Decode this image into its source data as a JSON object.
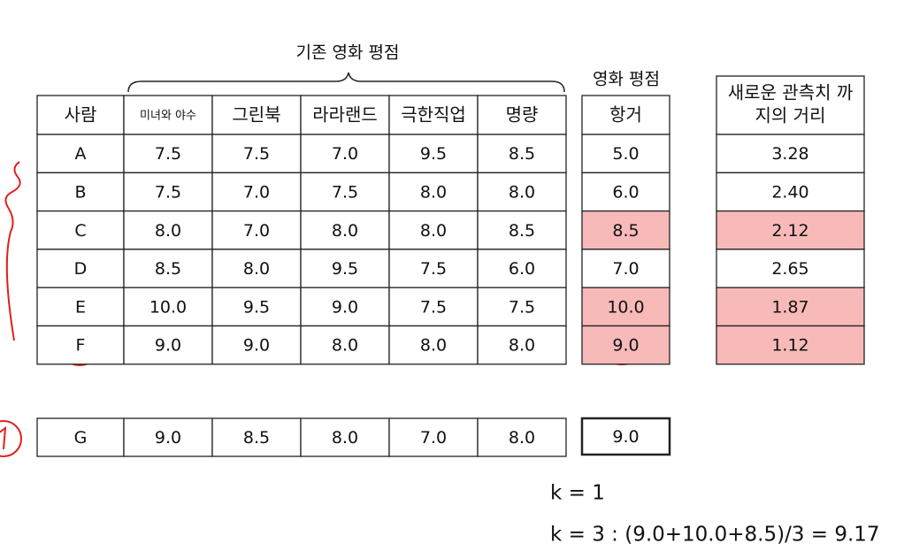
{
  "group_label": "기존 영화 평점",
  "header": [
    "사람",
    "미녀와 야수",
    "그린북",
    "라라랜드",
    "극한직업",
    "명량"
  ],
  "target_label": "영화 평점",
  "target_header": "항거",
  "distance_header": [
    "새로운 관측치 까",
    "지의 거리"
  ],
  "rows": [
    {
      "cells": [
        "A",
        "7.5",
        "7.5",
        "7.0",
        "9.5",
        "8.5"
      ],
      "target": "5.0",
      "distance": "3.28",
      "highlighted": false
    },
    {
      "cells": [
        "B",
        "7.5",
        "7.0",
        "7.5",
        "8.0",
        "8.0"
      ],
      "target": "6.0",
      "distance": "2.40",
      "highlighted": false
    },
    {
      "cells": [
        "C",
        "8.0",
        "7.0",
        "8.0",
        "8.0",
        "8.5"
      ],
      "target": "8.5",
      "distance": "2.12",
      "highlighted": true
    },
    {
      "cells": [
        "D",
        "8.5",
        "8.0",
        "9.5",
        "7.5",
        "6.0"
      ],
      "target": "7.0",
      "distance": "2.65",
      "highlighted": false
    },
    {
      "cells": [
        "E",
        "10.0",
        "9.5",
        "9.0",
        "7.5",
        "7.5"
      ],
      "target": "10.0",
      "distance": "1.87",
      "highlighted": true
    },
    {
      "cells": [
        "F",
        "9.0",
        "9.0",
        "8.0",
        "8.0",
        "8.0"
      ],
      "target": "9.0",
      "distance": "1.12",
      "highlighted": true
    }
  ],
  "new_row": {
    "cells": [
      "G",
      "9.0",
      "8.5",
      "8.0",
      "7.0",
      "8.0"
    ],
    "target": "9.0"
  },
  "formulas": [
    "k = 1",
    "k = 3 : (9.0+10.0+8.5)/3 = 9.17"
  ]
}
